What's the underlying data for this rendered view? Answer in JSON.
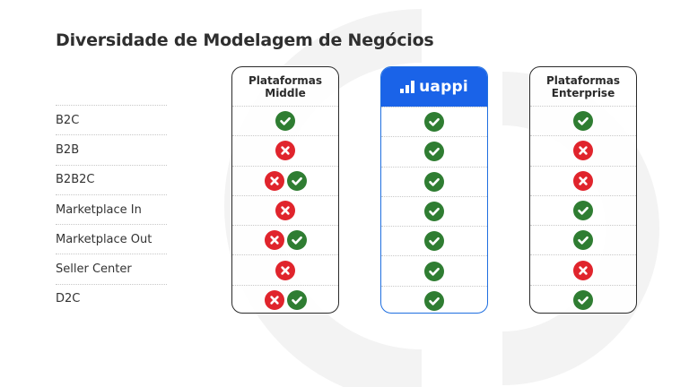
{
  "title": "Diversidade de Modelagem de Negócios",
  "rows": [
    "B2C",
    "B2B",
    "B2B2C",
    "Marketplace In",
    "Marketplace Out",
    "Seller Center",
    "D2C"
  ],
  "columns": [
    {
      "id": "middle",
      "header": "Plataformas\nMiddle",
      "cells": [
        [
          "check"
        ],
        [
          "cross"
        ],
        [
          "cross",
          "check"
        ],
        [
          "cross"
        ],
        [
          "cross",
          "check"
        ],
        [
          "cross"
        ],
        [
          "cross",
          "check"
        ]
      ]
    },
    {
      "id": "uappi",
      "header": "uappi",
      "cells": [
        [
          "check"
        ],
        [
          "check"
        ],
        [
          "check"
        ],
        [
          "check"
        ],
        [
          "check"
        ],
        [
          "check"
        ],
        [
          "check"
        ]
      ]
    },
    {
      "id": "enterprise",
      "header": "Plataformas\nEnterprise",
      "cells": [
        [
          "check"
        ],
        [
          "cross"
        ],
        [
          "cross"
        ],
        [
          "check"
        ],
        [
          "check"
        ],
        [
          "cross"
        ],
        [
          "check"
        ]
      ]
    }
  ],
  "colors": {
    "check": "#2f7d32",
    "cross": "#e0242c",
    "brand": "#1a63e8",
    "text": "#2f2f2f"
  },
  "icons": {
    "check": "check-circle-icon",
    "cross": "x-circle-icon"
  }
}
